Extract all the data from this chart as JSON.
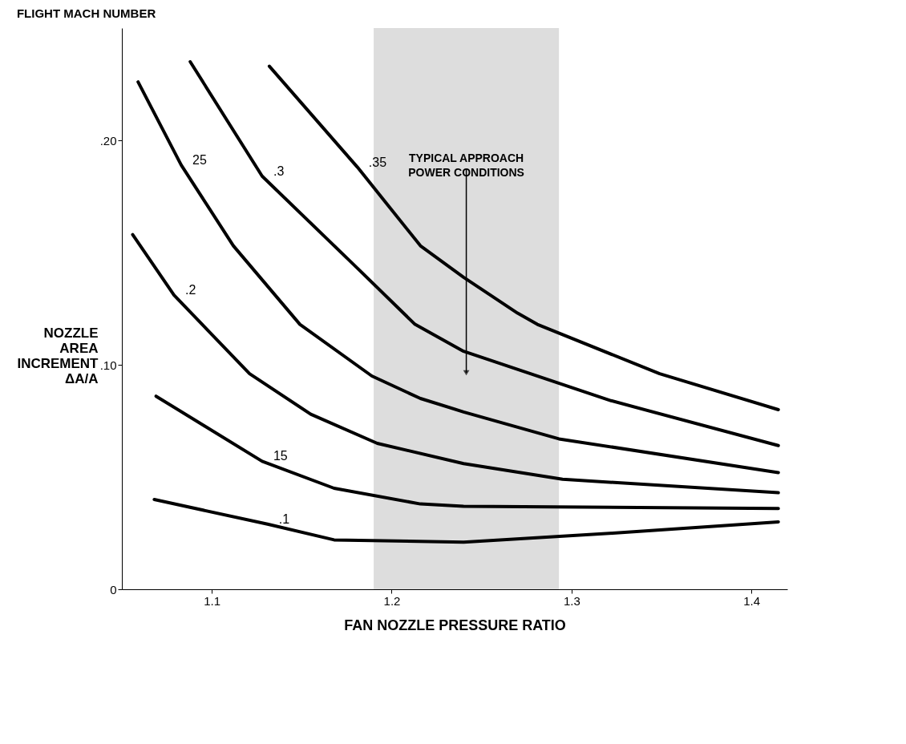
{
  "chart_data": {
    "type": "line",
    "legend_title": "FLIGHT MACH NUMBER",
    "xlabel": "FAN NOZZLE PRESSURE RATIO",
    "ylabel": "NOZZLE AREA INCREMENT ΔA/A",
    "xlim": [
      1.05,
      1.42
    ],
    "xticks": [
      1.1,
      1.2,
      1.3,
      1.4
    ],
    "ylim": [
      0,
      0.25
    ],
    "yticks": [
      0,
      {
        "value": 0.1,
        "label": ".10"
      },
      {
        "value": 0.2,
        "label": ".20"
      }
    ],
    "grid": false,
    "line_style": "solid",
    "series": [
      {
        "name": ".35",
        "color": "#000000",
        "x": [
          1.132,
          1.181,
          1.216,
          1.24,
          1.27,
          1.281,
          1.349,
          1.415
        ],
        "values": [
          0.233,
          0.188,
          0.153,
          0.139,
          0.123,
          0.118,
          0.096,
          0.08
        ]
      },
      {
        "name": ".3",
        "color": "#000000",
        "x": [
          1.088,
          1.128,
          1.181,
          1.213,
          1.24,
          1.322,
          1.415
        ],
        "values": [
          0.235,
          0.184,
          0.143,
          0.118,
          0.106,
          0.084,
          0.064
        ]
      },
      {
        "name": "25",
        "color": "#000000",
        "x": [
          1.059,
          1.083,
          1.112,
          1.149,
          1.189,
          1.216,
          1.24,
          1.293,
          1.415
        ],
        "values": [
          0.226,
          0.189,
          0.153,
          0.118,
          0.095,
          0.085,
          0.079,
          0.067,
          0.052
        ]
      },
      {
        "name": ".2",
        "color": "#000000",
        "x": [
          1.056,
          1.079,
          1.121,
          1.155,
          1.192,
          1.24,
          1.295,
          1.415
        ],
        "values": [
          0.158,
          0.131,
          0.096,
          0.078,
          0.065,
          0.056,
          0.049,
          0.043
        ]
      },
      {
        "name": "15",
        "color": "#000000",
        "x": [
          1.069,
          1.128,
          1.168,
          1.216,
          1.24,
          1.415
        ],
        "values": [
          0.086,
          0.057,
          0.045,
          0.038,
          0.037,
          0.036
        ]
      },
      {
        "name": ".1",
        "color": "#000000",
        "x": [
          1.068,
          1.131,
          1.168,
          1.24,
          1.323,
          1.415
        ],
        "values": [
          0.04,
          0.029,
          0.022,
          0.021,
          0.025,
          0.03
        ]
      }
    ],
    "bands": [
      {
        "axis": "x",
        "from": 1.19,
        "to": 1.293,
        "label": "TYPICAL APPROACH POWER CONDITIONS",
        "color": "#bbbbbb"
      }
    ]
  }
}
